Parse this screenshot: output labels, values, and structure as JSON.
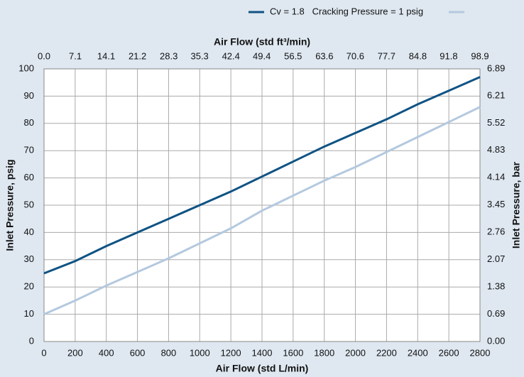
{
  "chart_data": {
    "type": "line",
    "x_label": "Air Flow (std L/min)",
    "x2_label": "Air Flow (std ft³/min)",
    "y_label": "Inlet Pressure, psig",
    "y2_label": "Inlet Pressure, bar",
    "x": [
      0,
      200,
      400,
      600,
      800,
      1000,
      1200,
      1400,
      1600,
      1800,
      2000,
      2200,
      2400,
      2600,
      2800
    ],
    "series": [
      {
        "name": "Cv = 1.8   Cracking Pressure = 1 psig",
        "color": "#0f5384",
        "values": [
          25,
          29.5,
          35,
          40,
          45,
          50,
          55,
          60.5,
          66,
          71.5,
          76.5,
          81.5,
          87,
          92,
          97
        ]
      },
      {
        "color": "#b4c9df",
        "values": [
          10,
          15,
          20.5,
          25.5,
          30.5,
          36,
          41.5,
          48,
          53.5,
          59,
          64,
          69.5,
          75,
          80.5,
          86
        ]
      }
    ],
    "xlim": [
      0,
      2800
    ],
    "xticks": [
      0,
      200,
      400,
      600,
      800,
      1000,
      1200,
      1400,
      1600,
      1800,
      2000,
      2200,
      2400,
      2600,
      2800
    ],
    "x2lim": [
      0,
      98.9
    ],
    "x2ticks": [
      {
        "value": 0,
        "label": "0.0"
      },
      7.1,
      14.1,
      21.2,
      28.3,
      35.3,
      42.4,
      49.4,
      56.5,
      63.6,
      70.6,
      77.7,
      84.8,
      91.8,
      98.9
    ],
    "ylim": [
      0,
      100
    ],
    "yticks": [
      0,
      10,
      20,
      30,
      40,
      50,
      60,
      70,
      80,
      90,
      100
    ],
    "y2lim": [
      0,
      6.89
    ],
    "y2ticks": [
      {
        "value": 0,
        "label": "0.00"
      },
      0.69,
      1.38,
      2.07,
      2.76,
      3.45,
      4.14,
      4.83,
      5.52,
      6.21,
      6.89
    ],
    "grid": true,
    "legend": "top"
  }
}
